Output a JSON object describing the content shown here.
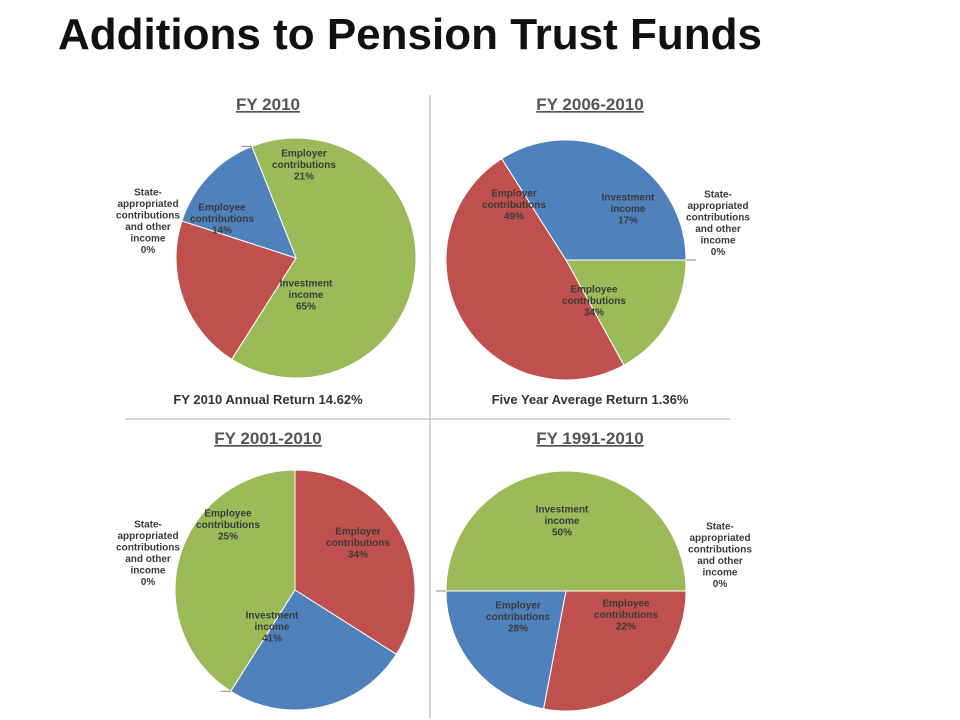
{
  "page": {
    "title": "Additions to Pension Trust Funds"
  },
  "chart_data": [
    {
      "type": "pie",
      "title": "FY 2010",
      "categories": [
        "Investment income",
        "Employer contributions",
        "Employee contributions",
        "State-appropriated contributions and other income"
      ],
      "values": [
        65,
        21,
        14,
        0
      ],
      "labels": [
        [
          "Investment",
          "income",
          "65%"
        ],
        [
          "Employer",
          "contributions",
          "21%"
        ],
        [
          "Employee",
          "contributions",
          "14%"
        ],
        [
          "State-",
          "appropriated",
          "contributions",
          "and other",
          "income",
          "0%"
        ]
      ],
      "colors": [
        "#9BBB59",
        "#C0504D",
        "#4F81BD",
        "#8064A2"
      ],
      "footer": "FY 2010 Annual Return 14.62%"
    },
    {
      "type": "pie",
      "title": "FY 2006-2010",
      "categories": [
        "Investment income",
        "Employer contributions",
        "Employee contributions",
        "State-appropriated contributions and other income"
      ],
      "values": [
        17,
        49,
        34,
        0
      ],
      "labels": [
        [
          "Investment",
          "income",
          "17%"
        ],
        [
          "Employer",
          "contributions",
          "49%"
        ],
        [
          "Employee",
          "contributions",
          "34%"
        ],
        [
          "State-",
          "appropriated",
          "contributions",
          "and other",
          "income",
          "0%"
        ]
      ],
      "colors": [
        "#9BBB59",
        "#C0504D",
        "#4F81BD",
        "#8064A2"
      ],
      "footer": "Five Year Average Return 1.36%"
    },
    {
      "type": "pie",
      "title": "FY 2001-2010",
      "categories": [
        "Investment income",
        "Employer contributions",
        "Employee contributions",
        "State-appropriated contributions and other income"
      ],
      "values": [
        41,
        34,
        25,
        0
      ],
      "labels": [
        [
          "Investment",
          "income",
          "41%"
        ],
        [
          "Employer",
          "contributions",
          "34%"
        ],
        [
          "Employee",
          "contributions",
          "25%"
        ],
        [
          "State-",
          "appropriated",
          "contributions",
          "and other",
          "income",
          "0%"
        ]
      ],
      "colors": [
        "#9BBB59",
        "#C0504D",
        "#4F81BD",
        "#8064A2"
      ],
      "footer": ""
    },
    {
      "type": "pie",
      "title": "FY 1991-2010",
      "categories": [
        "Investment income",
        "Employer contributions",
        "Employee contributions",
        "State-appropriated contributions and other income"
      ],
      "values": [
        50,
        28,
        22,
        0
      ],
      "labels": [
        [
          "Investment",
          "income",
          "50%"
        ],
        [
          "Employer",
          "contributions",
          "28%"
        ],
        [
          "Employee",
          "contributions",
          "22%"
        ],
        [
          "State-",
          "appropriated",
          "contributions",
          "and other",
          "income",
          "0%"
        ]
      ],
      "colors": [
        "#9BBB59",
        "#C0504D",
        "#4F81BD",
        "#8064A2"
      ],
      "footer": ""
    }
  ]
}
